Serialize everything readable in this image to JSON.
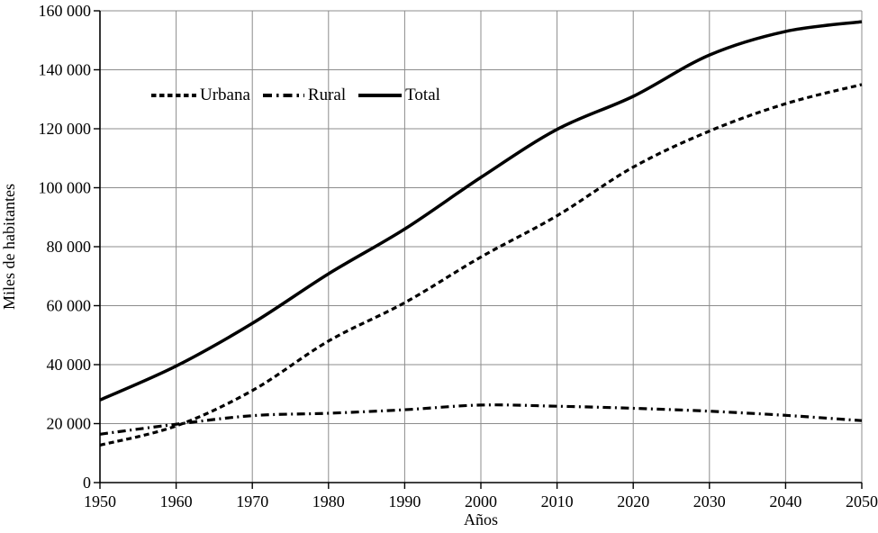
{
  "chart_data": {
    "type": "line",
    "xlabel": "Años",
    "ylabel": "Miles de habitantes",
    "x": [
      1950,
      1960,
      1970,
      1980,
      1990,
      2000,
      2010,
      2020,
      2030,
      2040,
      2050
    ],
    "x_tick_labels": [
      "1950",
      "1960",
      "1970",
      "1980",
      "1990",
      "2000",
      "2010",
      "2020",
      "2030",
      "2040",
      "2050"
    ],
    "y_tick_labels": [
      "0",
      "20 000",
      "40 000",
      "60 000",
      "80 000",
      "100 000",
      "120 000",
      "140 000",
      "160 000"
    ],
    "ylim": [
      0,
      160000
    ],
    "ytick_step": 20000,
    "grid": true,
    "legend_position": "inside-top-left",
    "series": [
      {
        "name": "Urbana",
        "style": "dashed",
        "color": "#000000",
        "values": [
          12700,
          19200,
          31200,
          48000,
          61000,
          76500,
          90500,
          107000,
          119200,
          128500,
          135000
        ]
      },
      {
        "name": "Rural",
        "style": "dash-dot",
        "color": "#000000",
        "values": [
          16400,
          19800,
          22700,
          23500,
          24700,
          26300,
          25900,
          25200,
          24200,
          22800,
          21000
        ]
      },
      {
        "name": "Total",
        "style": "solid",
        "color": "#000000",
        "values": [
          28000,
          39500,
          54000,
          70800,
          86000,
          103500,
          119800,
          131000,
          145000,
          153000,
          156300
        ]
      }
    ],
    "colors": {
      "axis": "#000000",
      "grid": "#8c8c8c",
      "text": "#000000"
    }
  }
}
